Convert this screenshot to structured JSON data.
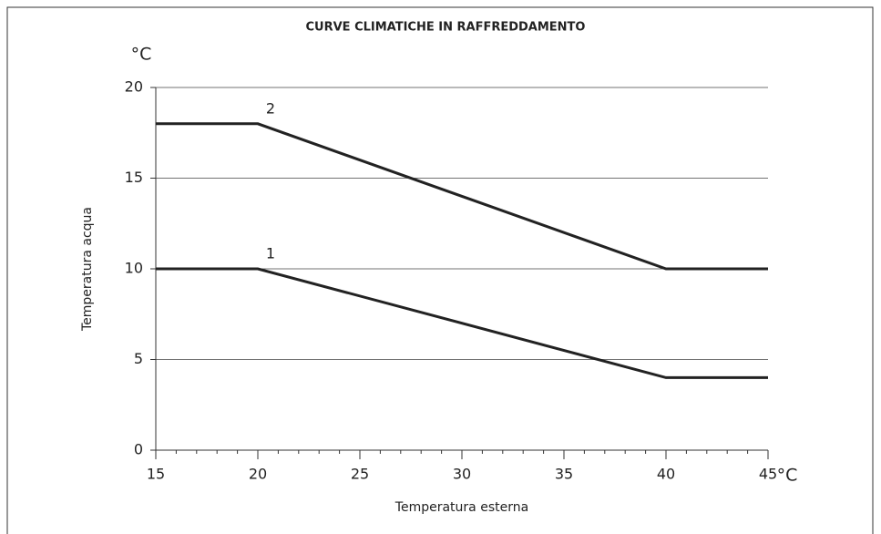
{
  "chart_data": {
    "type": "line",
    "title": "CURVE CLIMATICHE IN RAFFREDDAMENTO",
    "x_label": "Temperatura esterna",
    "y_label": "Temperatura acqua",
    "x_unit_label": "°C",
    "y_unit_label": "°C",
    "series": [
      {
        "name": "1",
        "color": "#222222",
        "x": [
          15,
          20,
          40,
          45
        ],
        "values": [
          10,
          10,
          4,
          4
        ]
      },
      {
        "name": "2",
        "color": "#222222",
        "x": [
          15,
          20,
          40,
          45
        ],
        "values": [
          18,
          18,
          10,
          10
        ]
      }
    ],
    "xlim": [
      15,
      45
    ],
    "xticks": [
      15,
      20,
      25,
      30,
      35,
      40,
      45
    ],
    "x_minor_step": 1,
    "ylim": [
      0,
      20
    ],
    "yticks": [
      0,
      5,
      10,
      15,
      20
    ],
    "grid": true
  }
}
